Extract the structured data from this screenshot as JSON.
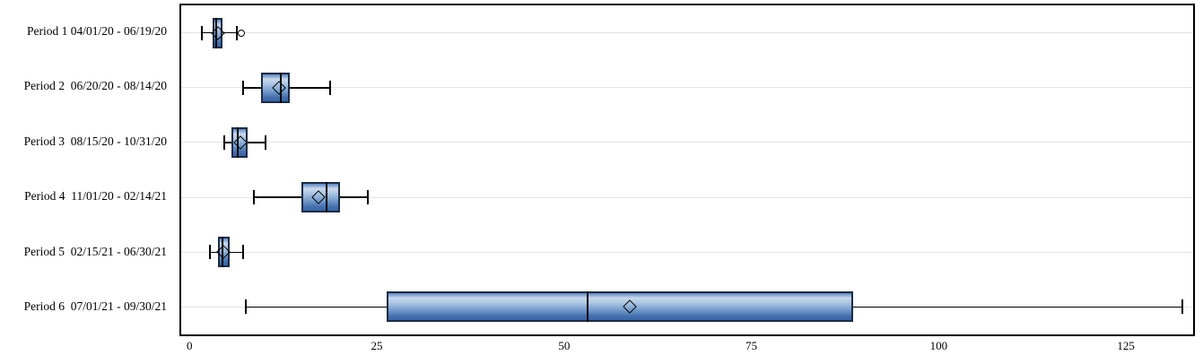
{
  "figure": {
    "background": "#ffffff",
    "frame_border_color": "#000000",
    "gridline_color": "#e3e3e3"
  },
  "chart_data": {
    "type": "boxplot",
    "orientation": "horizontal",
    "title": "",
    "xlabel": "",
    "ylabel": "",
    "xlim": [
      -1.35,
      134.2
    ],
    "x_ticks": [
      0,
      25,
      50,
      75,
      100,
      125
    ],
    "grid": "light horizontal line through each category row",
    "legend": "none",
    "categories": [
      "Period 1 04/01/20 - 06/19/20",
      "Period 2  06/20/20 - 08/14/20",
      "Period 3  08/15/20 - 10/31/20",
      "Period 4  11/01/20 - 02/14/21",
      "Period 5  02/15/21 - 06/30/21",
      "Period 6  07/01/21 - 09/30/21"
    ],
    "series": [
      {
        "category": "Period 1 04/01/20 - 06/19/20",
        "min": 1.4,
        "q1": 2.8,
        "median": 3.3,
        "q3": 4.2,
        "max": 6.1,
        "mean": 3.6,
        "outliers": [
          6.7
        ]
      },
      {
        "category": "Period 2  06/20/20 - 08/14/20",
        "min": 6.9,
        "q1": 9.4,
        "median": 12.0,
        "q3": 13.2,
        "max": 18.6,
        "mean": 11.8,
        "outliers": []
      },
      {
        "category": "Period 3  08/15/20 - 10/31/20",
        "min": 4.4,
        "q1": 5.4,
        "median": 6.2,
        "q3": 7.5,
        "max": 10.0,
        "mean": 6.6,
        "outliers": []
      },
      {
        "category": "Period 4  11/01/20 - 02/14/21",
        "min": 8.4,
        "q1": 14.7,
        "median": 18.1,
        "q3": 19.9,
        "max": 23.7,
        "mean": 17.0,
        "outliers": []
      },
      {
        "category": "Period 5  02/15/21 - 06/30/21",
        "min": 2.5,
        "q1": 3.6,
        "median": 4.2,
        "q3": 5.1,
        "max": 6.9,
        "mean": 4.3,
        "outliers": []
      },
      {
        "category": "Period 6  07/01/21 - 09/30/21",
        "min": 7.3,
        "q1": 26.2,
        "median": 53.1,
        "q3": 88.6,
        "max": 132.7,
        "mean": 58.7,
        "outliers": []
      }
    ],
    "markers": {
      "mean": "open diamond",
      "outlier": "open circle"
    },
    "colors": {
      "box_border": "#1c2b45",
      "box_gradient": [
        "#5d86bc",
        "#c9d9ee",
        "#aec6e4",
        "#7aa0cf",
        "#4570ad",
        "#3a65a3"
      ],
      "whisker": "#000000",
      "median": "#000000",
      "mean_marker": "#000000",
      "outlier_marker": "#000000"
    }
  }
}
